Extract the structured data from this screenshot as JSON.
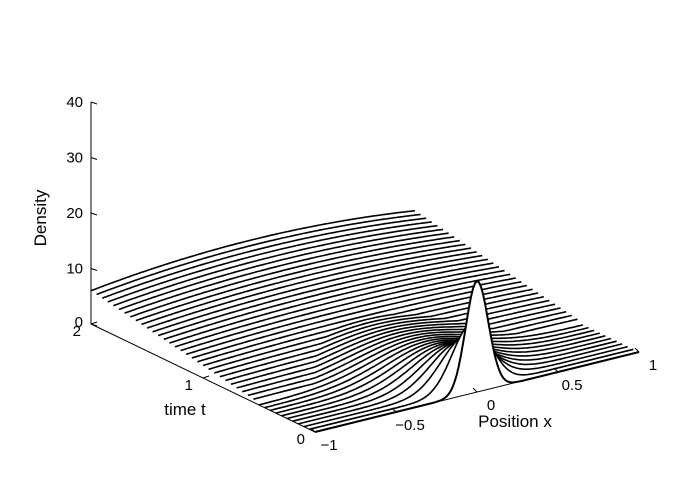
{
  "chart_data": {
    "type": "surface-waterfall",
    "title": "",
    "xlabel": "Position x",
    "ylabel": "time t",
    "zlabel": "Density",
    "xlim": [
      -1,
      1
    ],
    "tlim": [
      0,
      2
    ],
    "zlim": [
      0,
      40
    ],
    "x_ticks": [
      "−1",
      "−0.5",
      "0",
      "0.5",
      "1"
    ],
    "t_ticks": [
      "0",
      "1",
      "2"
    ],
    "z_ticks": [
      "0",
      "10",
      "20",
      "30",
      "40"
    ],
    "line_color": "#000000",
    "grid": false,
    "series_description": "Density profiles at successive times t from 0 to 2; initial narrow peak of height about 20 at x = 0 spreads to a nearly flat profile of height about 8 at t = 2",
    "curve_count": 41,
    "t_values": [
      0,
      2
    ],
    "peak_density": [
      20,
      8
    ]
  }
}
